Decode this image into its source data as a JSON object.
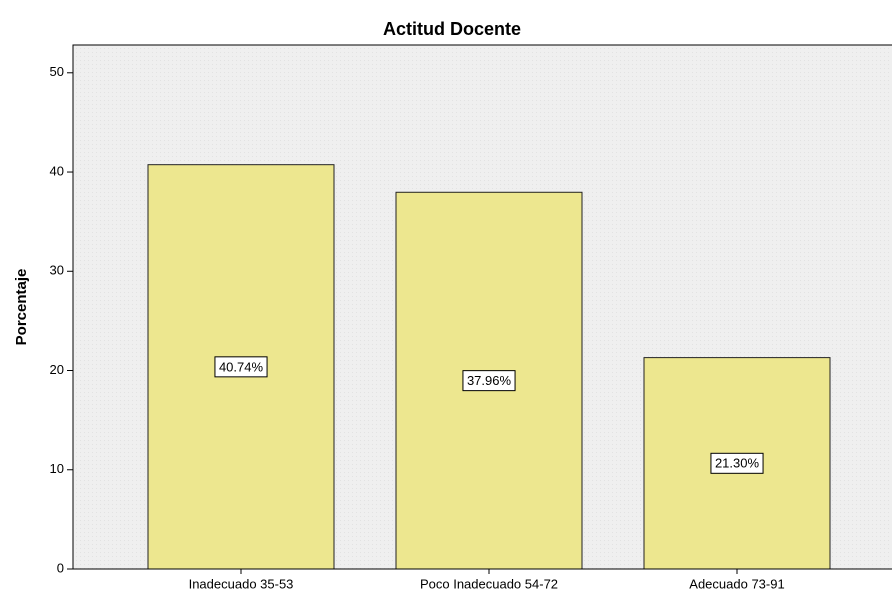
{
  "chart_data": {
    "type": "bar",
    "title": "Actitud Docente",
    "y_label": "Porcentaje",
    "categories": [
      "Inadecuado 35-53",
      "Poco Inadecuado 54-72",
      "Adecuado 73-91"
    ],
    "values": [
      40.74,
      37.96,
      21.3
    ],
    "value_labels": [
      "40.74%",
      "37.96%",
      "21.30%"
    ],
    "color": "#ede78f",
    "ylim": [
      0,
      52.8
    ],
    "yticks": [
      0,
      10,
      20,
      30,
      40,
      50
    ],
    "grid": false
  }
}
